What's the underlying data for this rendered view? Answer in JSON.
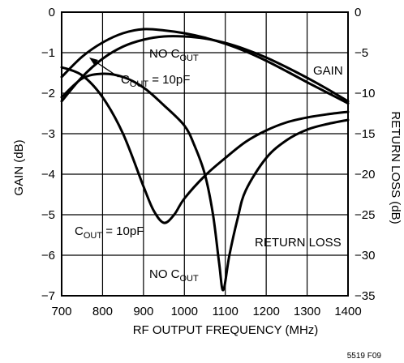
{
  "chart_data": {
    "type": "line",
    "title": "",
    "xlabel": "RF OUTPUT FREQUENCY (MHz)",
    "ylabel_left": "GAIN (dB)",
    "ylabel_right": "RETURN LOSS (dB)",
    "xlim": [
      700,
      1400
    ],
    "ylim_left": [
      -7,
      0
    ],
    "ylim_right": [
      -35,
      0
    ],
    "xticks": [
      700,
      800,
      900,
      1000,
      1100,
      1200,
      1300,
      1400
    ],
    "yticks_left": [
      0,
      -1,
      -2,
      -3,
      -4,
      -5,
      -6,
      -7
    ],
    "yticks_right": [
      0,
      -5,
      -10,
      -15,
      -20,
      -25,
      -30,
      -35
    ],
    "grid": true,
    "annotations": {
      "gain": "GAIN",
      "return_loss": "RETURN LOSS",
      "no_cout_prefix": "NO C",
      "cout_prefix": "C",
      "cout_subscript": "OUT",
      "cout_value": " = 10pF",
      "figure_id": "5519 F09"
    },
    "series": [
      {
        "axis": "left",
        "x": [
          700,
          750,
          800,
          850,
          900,
          950,
          1000,
          1050,
          1100,
          1150,
          1200,
          1250,
          1300,
          1350,
          1400
        ],
        "y": [
          -1.6,
          -1.1,
          -0.75,
          -0.52,
          -0.42,
          -0.45,
          -0.52,
          -0.63,
          -0.78,
          -0.97,
          -1.2,
          -1.46,
          -1.73,
          -1.99,
          -2.25
        ]
      },
      {
        "axis": "left",
        "x": [
          700,
          750,
          800,
          850,
          900,
          950,
          1000,
          1050,
          1100,
          1150,
          1200,
          1250,
          1300,
          1350,
          1400
        ],
        "y": [
          -2.2,
          -1.6,
          -1.15,
          -0.85,
          -0.68,
          -0.6,
          -0.6,
          -0.65,
          -0.76,
          -0.92,
          -1.12,
          -1.36,
          -1.62,
          -1.9,
          -2.2
        ]
      },
      {
        "axis": "right",
        "x": [
          700,
          750,
          800,
          850,
          900,
          925,
          950,
          975,
          1000,
          1050,
          1100,
          1150,
          1200,
          1250,
          1300,
          1350,
          1400
        ],
        "y": [
          -6.8,
          -7.8,
          -10.5,
          -15.0,
          -21.5,
          -24.5,
          -26.0,
          -25.0,
          -23.0,
          -20.2,
          -18.0,
          -16.0,
          -14.6,
          -13.6,
          -13.0,
          -12.6,
          -12.3
        ]
      },
      {
        "axis": "right",
        "x": [
          700,
          750,
          800,
          850,
          900,
          950,
          1000,
          1025,
          1050,
          1070,
          1085,
          1095,
          1110,
          1130,
          1150,
          1200,
          1250,
          1300,
          1350,
          1400
        ],
        "y": [
          -10.5,
          -8.2,
          -7.6,
          -8.0,
          -9.3,
          -11.5,
          -14.0,
          -16.5,
          -20.0,
          -25.0,
          -31.0,
          -34.3,
          -30.0,
          -25.5,
          -22.0,
          -18.0,
          -15.8,
          -14.5,
          -13.8,
          -13.3
        ]
      }
    ]
  }
}
